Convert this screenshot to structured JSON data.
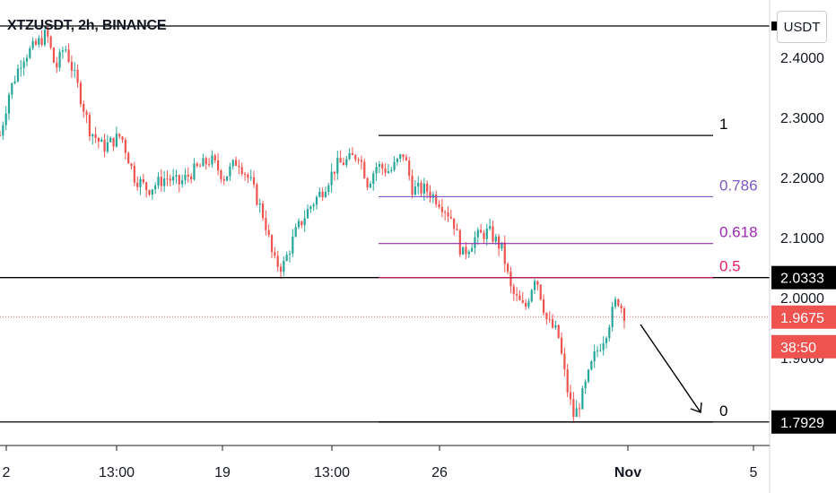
{
  "header": {
    "title": "XTZUSDT, 2h, BINANCE",
    "currency_button": "USDT"
  },
  "colors": {
    "up": "#26a69a",
    "down": "#ef5350",
    "line": "#000000",
    "fib_0786": "#7e57c2",
    "fib_0618": "#9c27b0",
    "fib_05": "#e91e63",
    "price_tag": "#ef5350",
    "level_tag": "#000000"
  },
  "chart_data": {
    "type": "candlestick",
    "symbol": "XTZUSDT",
    "interval": "2h",
    "exchange": "BINANCE",
    "y_ticks": [
      "2.4000",
      "2.3000",
      "2.2000",
      "2.1000",
      "2.0000",
      "1.9000"
    ],
    "y_range": [
      1.77,
      2.47
    ],
    "x_ticks": [
      "2",
      "13:00",
      "19",
      "13:00",
      "26",
      "Nov",
      "5"
    ],
    "fib_levels": [
      {
        "label": "1",
        "value": 2.27
      },
      {
        "label": "0.786",
        "value": 2.168
      },
      {
        "label": "0.618",
        "value": 2.09
      },
      {
        "label": "0.5",
        "value": 2.0333
      },
      {
        "label": "0",
        "value": 1.7929
      }
    ],
    "horizontal_lines": [
      2.4515,
      2.0333,
      1.7929
    ],
    "current_price": "1.9675",
    "countdown": "38:50",
    "level_labels": [
      "2.0333",
      "1.7929"
    ],
    "price_path": [
      [
        0,
        2.27
      ],
      [
        10,
        2.34
      ],
      [
        25,
        2.4
      ],
      [
        40,
        2.42
      ],
      [
        52,
        2.44
      ],
      [
        62,
        2.38
      ],
      [
        72,
        2.42
      ],
      [
        85,
        2.36
      ],
      [
        100,
        2.28
      ],
      [
        115,
        2.25
      ],
      [
        135,
        2.27
      ],
      [
        150,
        2.2
      ],
      [
        165,
        2.18
      ],
      [
        185,
        2.2
      ],
      [
        200,
        2.19
      ],
      [
        215,
        2.21
      ],
      [
        235,
        2.23
      ],
      [
        250,
        2.2
      ],
      [
        265,
        2.23
      ],
      [
        280,
        2.19
      ],
      [
        295,
        2.13
      ],
      [
        305,
        2.06
      ],
      [
        315,
        2.05
      ],
      [
        330,
        2.11
      ],
      [
        345,
        2.15
      ],
      [
        360,
        2.18
      ],
      [
        375,
        2.22
      ],
      [
        390,
        2.23
      ],
      [
        400,
        2.24
      ],
      [
        410,
        2.19
      ],
      [
        420,
        2.22
      ],
      [
        435,
        2.21
      ],
      [
        450,
        2.24
      ],
      [
        460,
        2.18
      ],
      [
        475,
        2.18
      ],
      [
        490,
        2.16
      ],
      [
        505,
        2.13
      ],
      [
        515,
        2.07
      ],
      [
        530,
        2.1
      ],
      [
        545,
        2.11
      ],
      [
        560,
        2.08
      ],
      [
        570,
        2.01
      ],
      [
        585,
        1.98
      ],
      [
        597,
        2.04
      ],
      [
        610,
        1.96
      ],
      [
        622,
        1.94
      ],
      [
        632,
        1.85
      ],
      [
        640,
        1.8
      ],
      [
        650,
        1.84
      ],
      [
        662,
        1.9
      ],
      [
        675,
        1.94
      ],
      [
        688,
        2.0
      ],
      [
        697,
        1.97
      ]
    ]
  }
}
